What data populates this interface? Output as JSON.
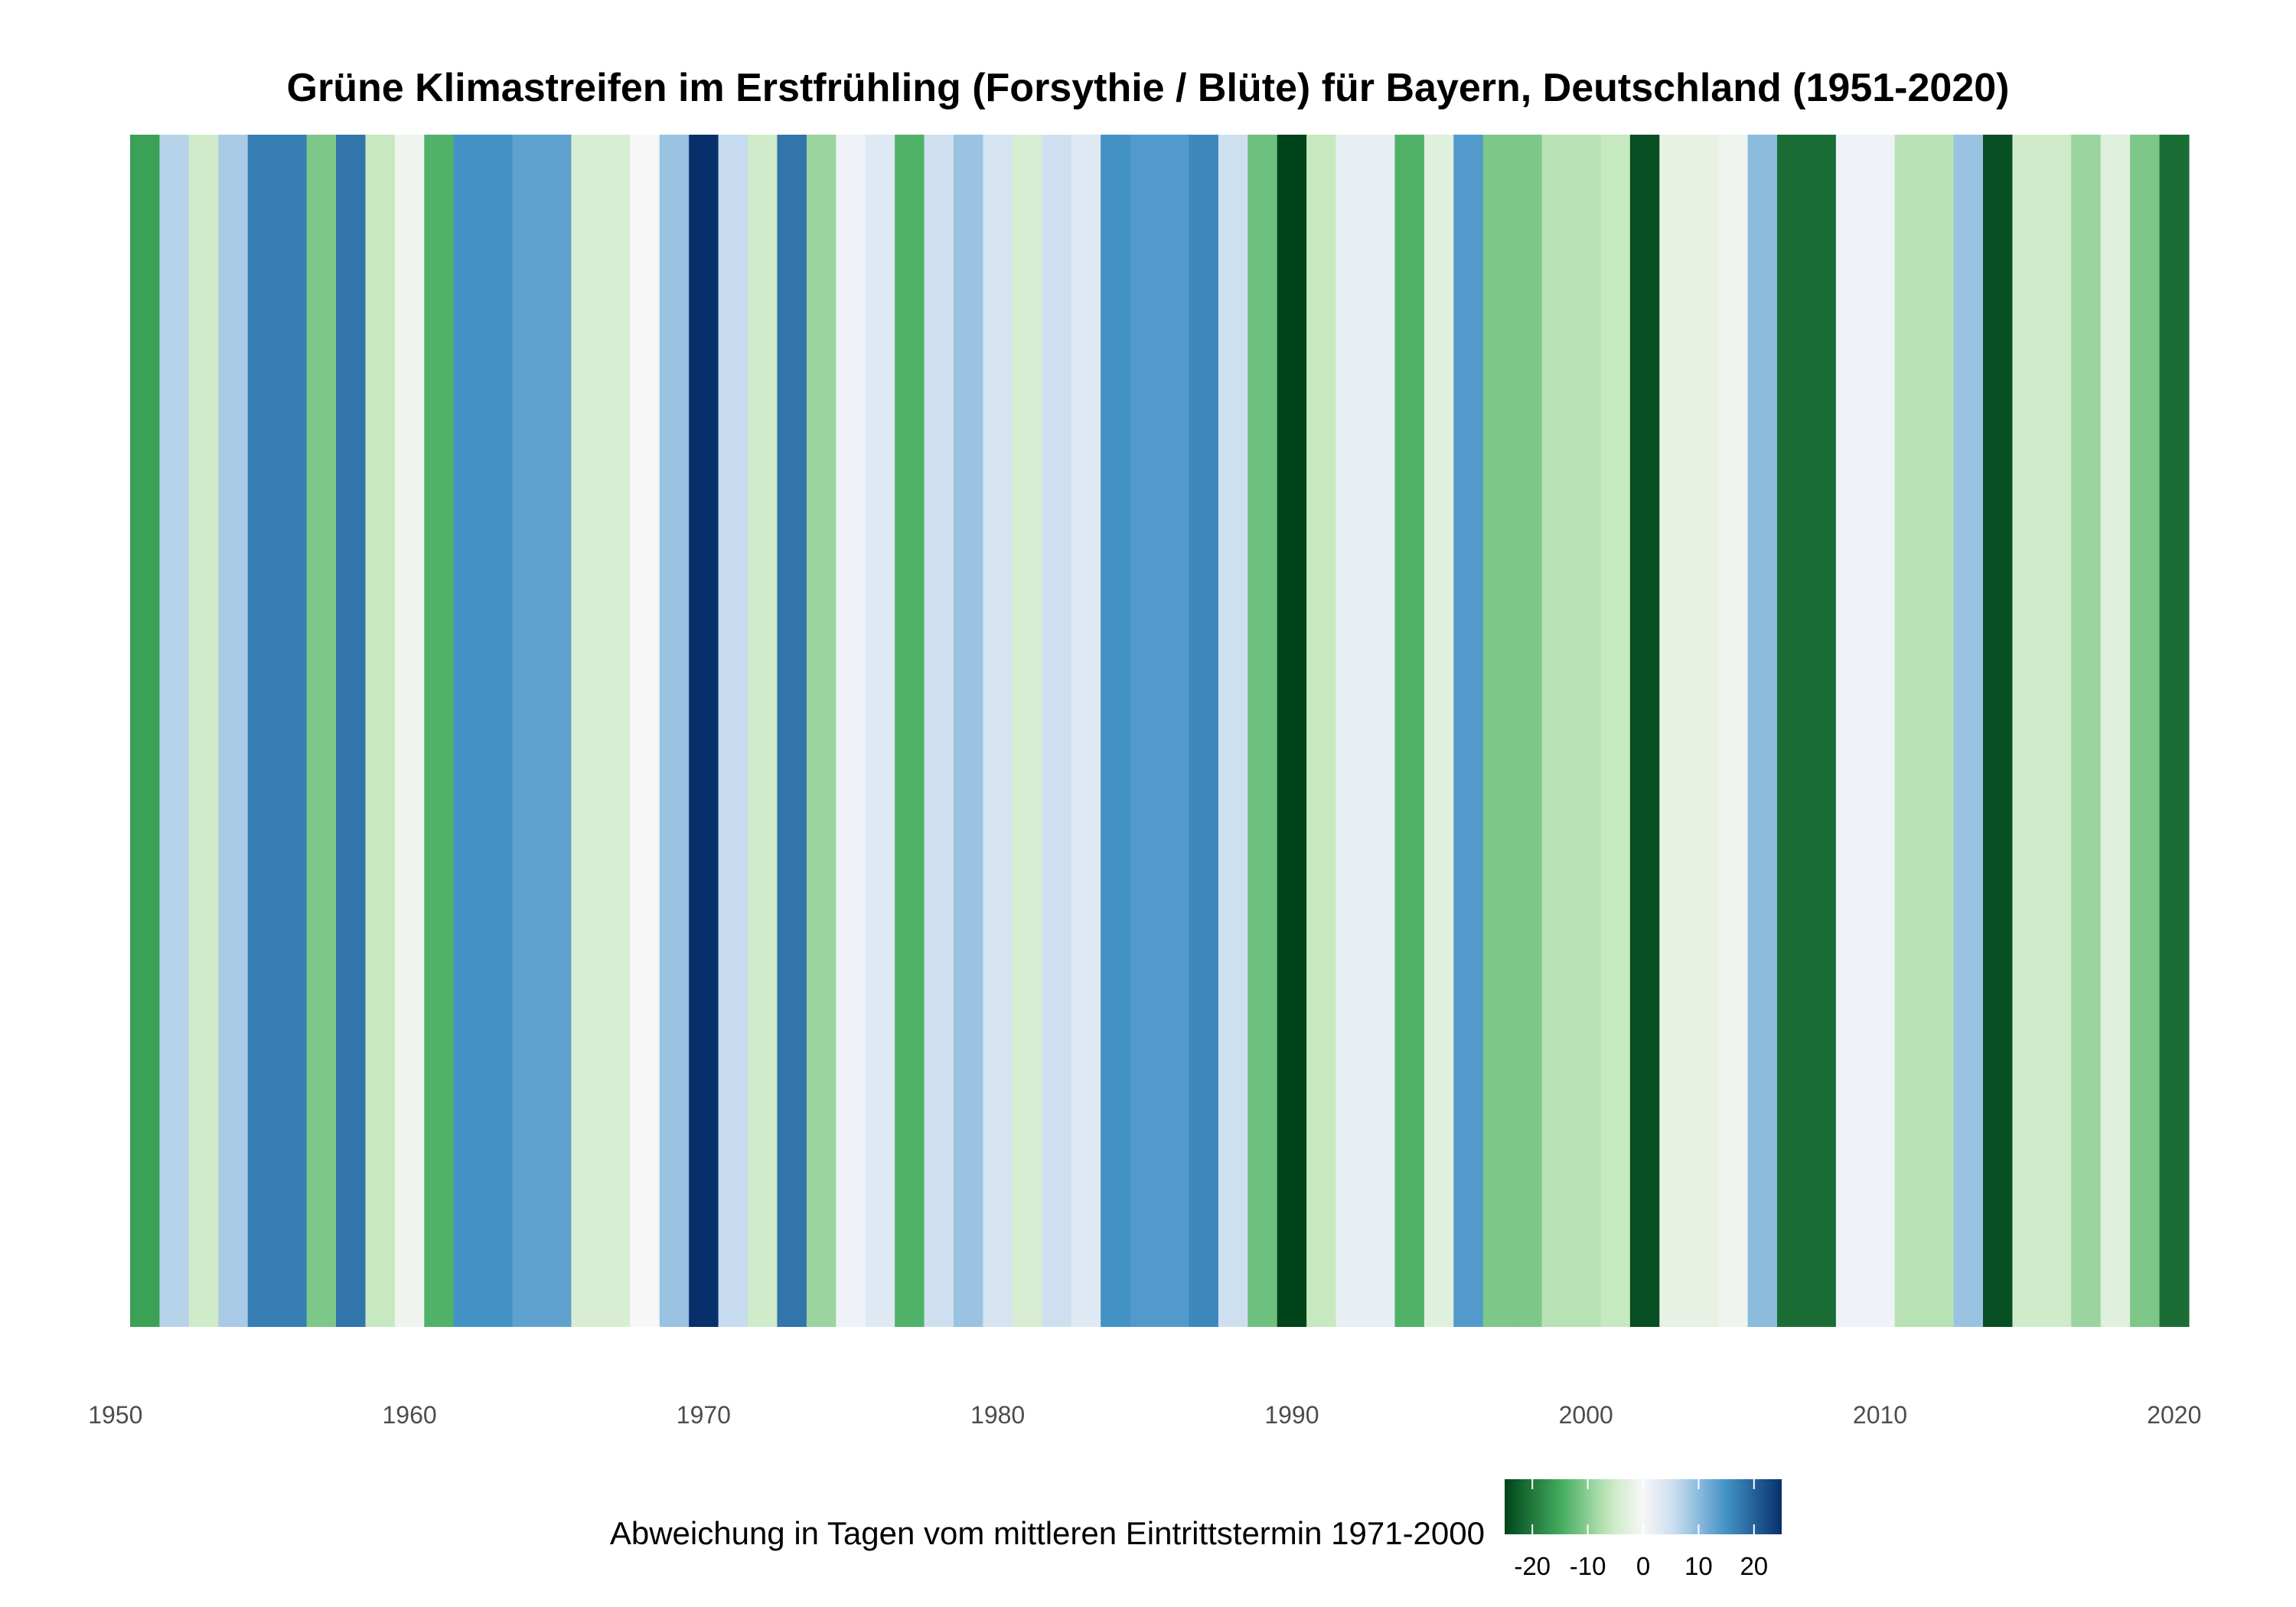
{
  "chart_data": {
    "type": "heatmap",
    "title": "Grüne Klimastreifen im Erstfrühling (Forsythie / Blüte) für Bayern, Deutschland (1951-2020)",
    "xlabel": "",
    "ylabel": "",
    "xlim": [
      1950.5,
      2020.5
    ],
    "x_ticks": [
      "1950",
      "1960",
      "1970",
      "1980",
      "1990",
      "2000",
      "2010",
      "2020"
    ],
    "tick_values": [
      1950,
      1960,
      1970,
      1980,
      1990,
      2000,
      2010,
      2020
    ],
    "years": [
      1951,
      1952,
      1953,
      1954,
      1955,
      1956,
      1957,
      1958,
      1959,
      1960,
      1961,
      1962,
      1963,
      1964,
      1965,
      1966,
      1967,
      1968,
      1969,
      1970,
      1971,
      1972,
      1973,
      1974,
      1975,
      1976,
      1977,
      1978,
      1979,
      1980,
      1981,
      1982,
      1983,
      1984,
      1985,
      1986,
      1987,
      1988,
      1989,
      1990,
      1991,
      1992,
      1993,
      1994,
      1995,
      1996,
      1997,
      1998,
      1999,
      2000,
      2001,
      2002,
      2003,
      2004,
      2005,
      2006,
      2007,
      2008,
      2009,
      2010,
      2011,
      2012,
      2013,
      2014,
      2015,
      2016,
      2017,
      2018,
      2019,
      2020
    ],
    "values": [
      -16,
      7,
      -5,
      8,
      17,
      17,
      -11,
      18,
      -6,
      -1,
      -14,
      15,
      15,
      13,
      13,
      -4,
      -4,
      0,
      9,
      25,
      6,
      -5,
      18,
      -9,
      1,
      3,
      -14,
      5,
      9,
      4,
      -4,
      5,
      3,
      15,
      14,
      14,
      16,
      5,
      -12,
      -27,
      -6,
      2,
      2,
      -14,
      -3,
      14,
      -11,
      -11,
      -7,
      -7,
      -6,
      -24,
      -2,
      -2,
      -1,
      10,
      -21,
      -21,
      1,
      1,
      -7,
      -7,
      9,
      -24,
      -5,
      -5,
      -9,
      -3,
      -11,
      -21
    ],
    "legend": {
      "title": "Abweichung in Tagen vom mittleren Eintrittstermin 1971-2000",
      "range": [
        -25,
        25
      ],
      "ticks": [
        "-20",
        "-10",
        "0",
        "10",
        "20"
      ],
      "tick_values": [
        -20,
        -10,
        0,
        10,
        20
      ],
      "position": "bottom"
    },
    "colors": {
      "green_dark": "#00441b",
      "green_mid": "#41ab5d",
      "green_light": "#c7e9c0",
      "neutral": "#f7f7f7",
      "blue_light": "#c6dbef",
      "blue_mid": "#4292c6",
      "blue_dark": "#08306b"
    }
  }
}
